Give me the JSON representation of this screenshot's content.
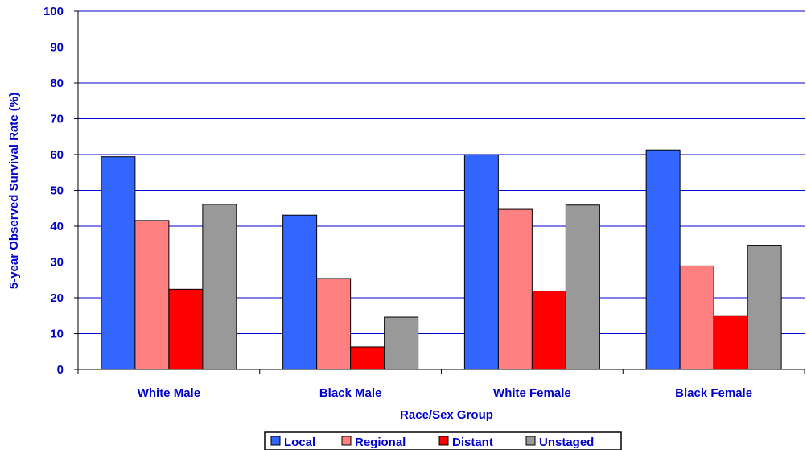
{
  "chart_data": {
    "type": "bar",
    "title": "",
    "xlabel": "Race/Sex Group",
    "ylabel": "5-year Observed Survival Rate (%)",
    "ylim": [
      0,
      100
    ],
    "yticks": [
      0,
      10,
      20,
      30,
      40,
      50,
      60,
      70,
      80,
      90,
      100
    ],
    "grid": true,
    "legend_position": "bottom",
    "categories": [
      "White Male",
      "Black Male",
      "White Female",
      "Black Female"
    ],
    "series": [
      {
        "name": "Local",
        "color": "#3366ff",
        "values": [
          59.4,
          43.1,
          59.9,
          61.3
        ]
      },
      {
        "name": "Regional",
        "color": "#ff8080",
        "values": [
          41.6,
          25.4,
          44.7,
          28.9
        ]
      },
      {
        "name": "Distant",
        "color": "#ff0000",
        "values": [
          22.4,
          6.3,
          21.9,
          15.0
        ]
      },
      {
        "name": "Unstaged",
        "color": "#999999",
        "values": [
          46.1,
          14.6,
          45.9,
          34.7
        ]
      }
    ],
    "colors": {
      "text": "#0000cc",
      "grid": "#0000cc",
      "axis": "#000000"
    }
  }
}
